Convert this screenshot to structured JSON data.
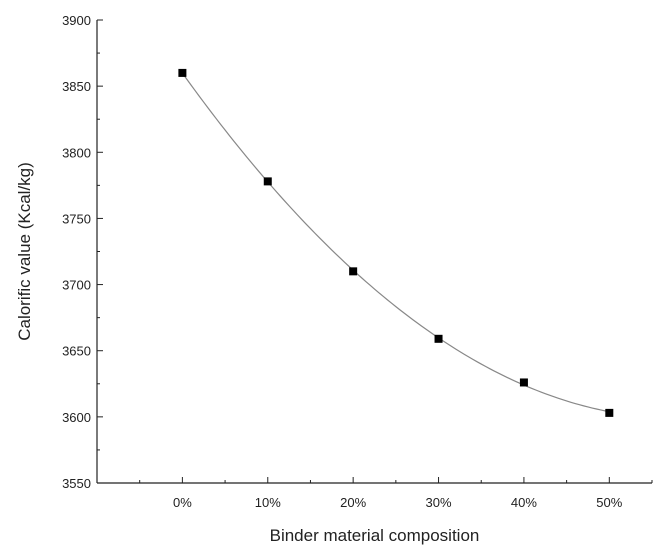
{
  "chart_data": {
    "type": "line",
    "title": "",
    "xlabel": "Binder material composition",
    "ylabel": "Calorific value (Kcal/kg)",
    "categories": [
      "0%",
      "10%",
      "20%",
      "30%",
      "40%",
      "50%"
    ],
    "x": [
      0,
      10,
      20,
      30,
      40,
      50
    ],
    "xlim": [
      -10,
      55
    ],
    "ylim": [
      3550,
      3900
    ],
    "yticks": [
      3550,
      3600,
      3650,
      3700,
      3750,
      3800,
      3850,
      3900
    ],
    "series": [
      {
        "values": [
          3860,
          3778,
          3710,
          3659,
          3626,
          3603
        ],
        "marker": "square",
        "line": "smooth fit",
        "color": "#000000",
        "line_color": "#888888"
      }
    ],
    "grid": false,
    "legend": "none"
  }
}
